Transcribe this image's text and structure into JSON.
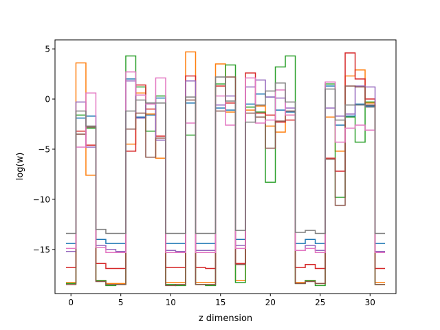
{
  "chart_data": {
    "type": "line",
    "style": "step",
    "title": "",
    "xlabel": "z dimension",
    "ylabel": "log(w)",
    "xlim": [
      -1.6,
      32.6
    ],
    "ylim": [
      -19.4,
      5.9
    ],
    "xticks": [
      0,
      5,
      10,
      15,
      20,
      25,
      30
    ],
    "yticks": [
      5,
      0,
      -5,
      -10,
      -15
    ],
    "ytick_labels": [
      "5",
      "0",
      "−5",
      "−10",
      "−15"
    ],
    "grid": false,
    "legend": "none",
    "series": [
      {
        "color": "#1f77b4",
        "values": [
          -14.4,
          -1.9,
          -1.7,
          -14.0,
          -14.4,
          -14.4,
          2.0,
          -1.8,
          -1.6,
          0.1,
          -14.4,
          -14.4,
          -0.4,
          -14.4,
          -14.4,
          -0.9,
          -1.1,
          -14.0,
          -0.5,
          0.5,
          0.2,
          -1.1,
          -1.3,
          -14.4,
          -14.0,
          -14.4,
          1.3,
          -2.6,
          -1.7,
          -0.5,
          -0.7,
          -14.4
        ]
      },
      {
        "color": "#ff7f0e",
        "values": [
          -18.3,
          3.6,
          -7.6,
          -18.1,
          -18.4,
          -18.4,
          -4.5,
          0.6,
          -1.5,
          -5.9,
          -18.3,
          -18.3,
          4.7,
          -18.3,
          -18.3,
          3.5,
          -1.3,
          -18.1,
          -1.1,
          -0.7,
          -2.7,
          -3.3,
          -1.6,
          -18.3,
          -18.1,
          -18.4,
          -1.8,
          -5.2,
          2.3,
          2.9,
          -0.4,
          -18.3
        ]
      },
      {
        "color": "#2ca02c",
        "values": [
          -18.4,
          -1.6,
          -2.9,
          -18.1,
          -18.6,
          -18.5,
          4.3,
          1.2,
          -3.2,
          0.3,
          -18.5,
          -18.6,
          -3.6,
          -18.5,
          -18.6,
          1.5,
          3.4,
          -18.3,
          -0.8,
          -1.3,
          -8.3,
          3.2,
          4.3,
          -18.4,
          -18.1,
          -18.6,
          1.5,
          -9.8,
          -1.8,
          -4.3,
          -0.3,
          -18.5
        ]
      },
      {
        "color": "#d62728",
        "values": [
          -16.8,
          -3.2,
          -4.6,
          -16.4,
          -16.9,
          -16.9,
          -5.2,
          1.4,
          -1.0,
          -3.7,
          -16.8,
          -16.8,
          2.3,
          -16.8,
          -16.9,
          1.3,
          -0.4,
          -16.4,
          2.6,
          -1.4,
          -1.6,
          -2.3,
          -2.1,
          -16.8,
          -16.5,
          -16.9,
          -5.9,
          -7.2,
          4.6,
          2.0,
          0.0,
          -16.9
        ]
      },
      {
        "color": "#9467bd",
        "values": [
          -15.2,
          -0.3,
          -4.8,
          -14.6,
          -15.0,
          -15.2,
          1.8,
          -1.9,
          -0.4,
          -4.1,
          -15.1,
          -15.2,
          1.8,
          -15.1,
          -15.1,
          -0.6,
          0.3,
          -14.6,
          1.2,
          1.9,
          0.2,
          0.1,
          -0.9,
          -15.1,
          -14.6,
          -15.1,
          -0.9,
          -1.7,
          -1.5,
          1.3,
          1.2,
          -15.2
        ]
      },
      {
        "color": "#8c564b",
        "values": [
          -18.5,
          -3.5,
          -2.8,
          -18.2,
          -18.5,
          -18.5,
          -3.0,
          -1.4,
          -5.8,
          -3.9,
          -18.6,
          -18.5,
          -0.1,
          -18.5,
          -18.5,
          -1.2,
          2.2,
          -16.5,
          -1.4,
          -1.8,
          -4.9,
          -2.2,
          -1.2,
          -18.4,
          -18.2,
          -18.4,
          -6.0,
          -10.6,
          1.3,
          1.2,
          -0.6,
          -18.5
        ]
      },
      {
        "color": "#e377c2",
        "values": [
          -14.9,
          -4.8,
          0.6,
          -14.8,
          -15.3,
          -15.3,
          2.7,
          0.4,
          -0.5,
          2.1,
          -15.3,
          -15.3,
          -2.4,
          -15.3,
          -15.3,
          0.3,
          -2.6,
          -14.9,
          2.1,
          -2.4,
          -2.1,
          0.9,
          -1.6,
          -15.1,
          -14.9,
          -15.3,
          1.7,
          -4.3,
          -2.9,
          -2.6,
          -3.1,
          -15.3
        ]
      },
      {
        "color": "#7f7f7f",
        "values": [
          -13.4,
          -1.2,
          -2.7,
          -13.0,
          -13.4,
          -13.4,
          -1.2,
          -0.1,
          -0.4,
          -0.4,
          -13.4,
          -13.4,
          0.2,
          -13.4,
          -13.4,
          2.2,
          -0.2,
          -13.1,
          -2.3,
          -0.6,
          0.8,
          1.6,
          -0.3,
          -13.3,
          -13.1,
          -13.4,
          1.0,
          -2.1,
          -0.6,
          -0.6,
          -0.8,
          -13.4
        ]
      }
    ]
  }
}
